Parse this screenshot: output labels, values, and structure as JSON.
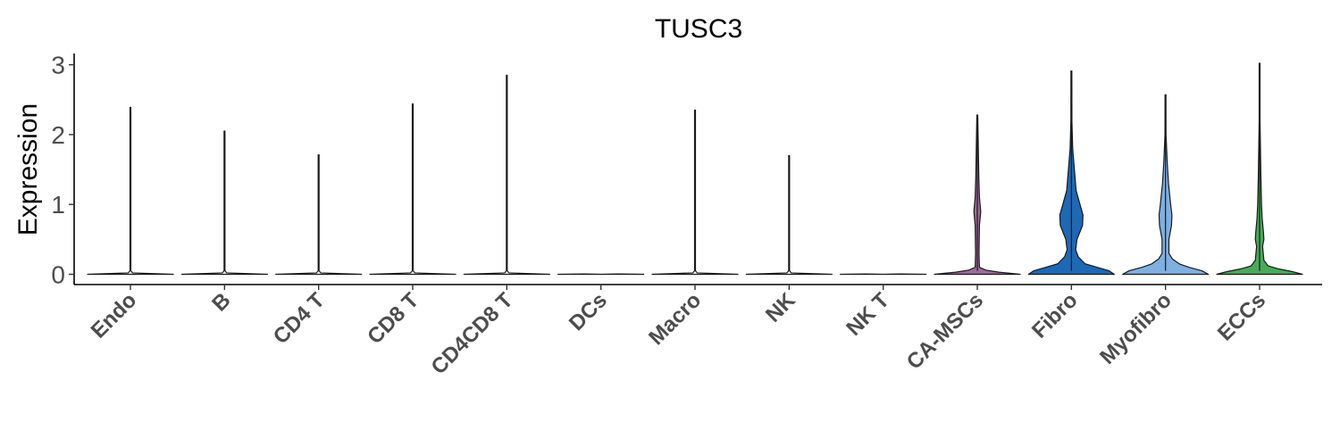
{
  "chart_data": {
    "type": "violin",
    "title": "TUSC3",
    "xlabel": "",
    "ylabel": "Expression",
    "ylim": [
      -0.15,
      3.15
    ],
    "yticks": [
      0,
      1,
      2,
      3
    ],
    "grid": false,
    "legend": "none",
    "categories": [
      "Endo",
      "B",
      "CD4 T",
      "CD8 T",
      "CD4CD8 T",
      "DCs",
      "Macro",
      "NK",
      "NK T",
      "CA-MSCs",
      "Fibro",
      "Myofibro",
      "ECCs"
    ],
    "series": [
      {
        "category": "Endo",
        "max": 2.39,
        "color": "#ffffff",
        "profile": [
          [
            0,
            1.0
          ],
          [
            0.02,
            0.05
          ],
          [
            0.05,
            0.008
          ],
          [
            2.39,
            0.006
          ]
        ]
      },
      {
        "category": "B",
        "max": 2.05,
        "color": "#ffffff",
        "profile": [
          [
            0,
            1.0
          ],
          [
            0.02,
            0.05
          ],
          [
            0.05,
            0.008
          ],
          [
            2.05,
            0.006
          ]
        ]
      },
      {
        "category": "CD4 T",
        "max": 1.71,
        "color": "#ffffff",
        "profile": [
          [
            0,
            1.0
          ],
          [
            0.02,
            0.05
          ],
          [
            0.05,
            0.008
          ],
          [
            1.71,
            0.006
          ]
        ]
      },
      {
        "category": "CD8 T",
        "max": 2.44,
        "color": "#ffffff",
        "profile": [
          [
            0,
            1.0
          ],
          [
            0.02,
            0.05
          ],
          [
            0.05,
            0.008
          ],
          [
            2.44,
            0.006
          ]
        ]
      },
      {
        "category": "CD4CD8 T",
        "max": 2.85,
        "color": "#ffffff",
        "profile": [
          [
            0,
            1.0
          ],
          [
            0.02,
            0.05
          ],
          [
            0.05,
            0.008
          ],
          [
            2.85,
            0.006
          ]
        ]
      },
      {
        "category": "DCs",
        "max": 0.0,
        "color": "#ffffff",
        "profile": [
          [
            0,
            1.0
          ],
          [
            0.005,
            0.4
          ]
        ]
      },
      {
        "category": "Macro",
        "max": 2.35,
        "color": "#ffffff",
        "profile": [
          [
            0,
            1.0
          ],
          [
            0.02,
            0.05
          ],
          [
            0.05,
            0.008
          ],
          [
            2.35,
            0.006
          ]
        ]
      },
      {
        "category": "NK",
        "max": 1.7,
        "color": "#ffffff",
        "profile": [
          [
            0,
            1.0
          ],
          [
            0.02,
            0.05
          ],
          [
            0.05,
            0.008
          ],
          [
            1.7,
            0.006
          ]
        ]
      },
      {
        "category": "NK T",
        "max": 0.0,
        "color": "#ffffff",
        "profile": [
          [
            0,
            1.0
          ],
          [
            0.005,
            0.4
          ]
        ]
      },
      {
        "category": "CA-MSCs",
        "max": 2.28,
        "color": "#9c6b9a",
        "profile": [
          [
            0,
            1.0
          ],
          [
            0.03,
            0.5
          ],
          [
            0.06,
            0.2
          ],
          [
            0.1,
            0.05
          ],
          [
            0.3,
            0.04
          ],
          [
            0.7,
            0.05
          ],
          [
            0.9,
            0.08
          ],
          [
            1.1,
            0.05
          ],
          [
            1.4,
            0.035
          ],
          [
            2.28,
            0.006
          ]
        ]
      },
      {
        "category": "Fibro",
        "max": 2.91,
        "color": "#1f68b4",
        "profile": [
          [
            0,
            1.0
          ],
          [
            0.05,
            0.88
          ],
          [
            0.1,
            0.6
          ],
          [
            0.15,
            0.32
          ],
          [
            0.25,
            0.16
          ],
          [
            0.35,
            0.1
          ],
          [
            0.5,
            0.13
          ],
          [
            0.7,
            0.26
          ],
          [
            0.85,
            0.27
          ],
          [
            1.0,
            0.2
          ],
          [
            1.2,
            0.11
          ],
          [
            1.5,
            0.07
          ],
          [
            1.8,
            0.03
          ],
          [
            2.2,
            0.012
          ],
          [
            2.91,
            0.006
          ]
        ]
      },
      {
        "category": "Myofibro",
        "max": 2.57,
        "color": "#80afe0",
        "profile": [
          [
            0,
            1.0
          ],
          [
            0.05,
            0.85
          ],
          [
            0.1,
            0.55
          ],
          [
            0.15,
            0.32
          ],
          [
            0.22,
            0.16
          ],
          [
            0.3,
            0.08
          ],
          [
            0.5,
            0.08
          ],
          [
            0.7,
            0.14
          ],
          [
            0.85,
            0.15
          ],
          [
            1.0,
            0.12
          ],
          [
            1.3,
            0.07
          ],
          [
            1.6,
            0.04
          ],
          [
            2.0,
            0.012
          ],
          [
            2.57,
            0.006
          ]
        ]
      },
      {
        "category": "ECCs",
        "max": 3.02,
        "color": "#4aa95a",
        "profile": [
          [
            0,
            1.0
          ],
          [
            0.04,
            0.75
          ],
          [
            0.08,
            0.42
          ],
          [
            0.12,
            0.2
          ],
          [
            0.2,
            0.1
          ],
          [
            0.4,
            0.07
          ],
          [
            0.5,
            0.1
          ],
          [
            0.6,
            0.09
          ],
          [
            0.8,
            0.06
          ],
          [
            1.0,
            0.045
          ],
          [
            1.4,
            0.03
          ],
          [
            1.8,
            0.02
          ],
          [
            2.2,
            0.01
          ],
          [
            3.02,
            0.006
          ]
        ]
      }
    ]
  }
}
